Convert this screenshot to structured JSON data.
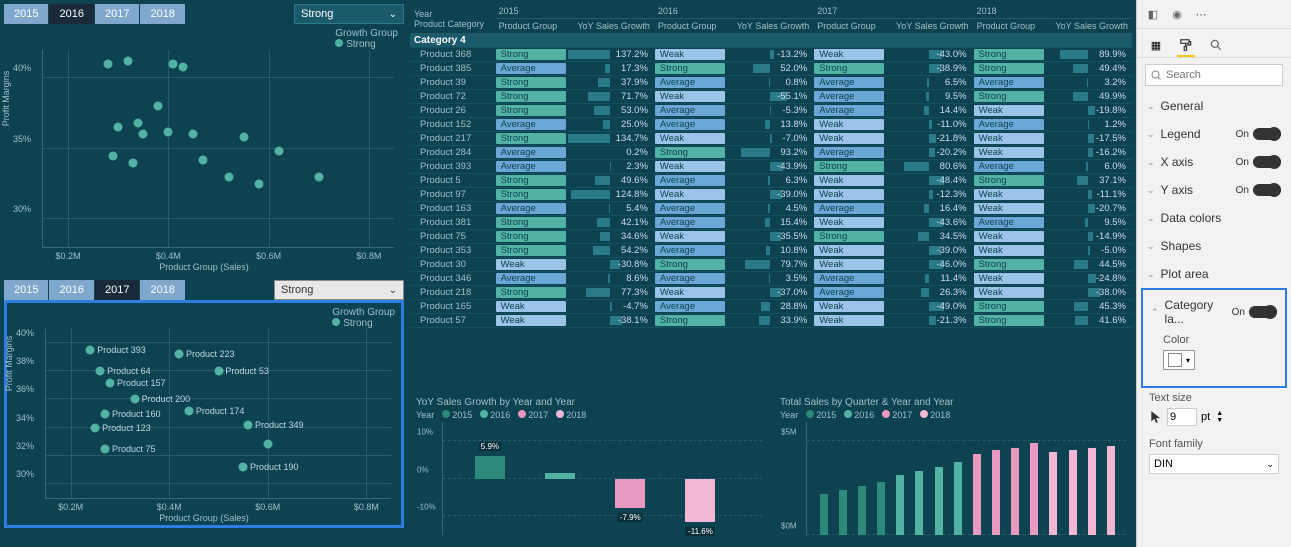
{
  "colors": {
    "bg": "#0d4251",
    "teal": "#52b3a4",
    "tealDark": "#2d8a7a",
    "blue": "#6ba8d8",
    "pink": "#e89ac0",
    "pinkDark": "#d878a8",
    "grid": "#2a5a6a",
    "text": "#a0c0c8",
    "tab": "#7fa8cc",
    "tabSel": "#1a2a3a",
    "selectOutline": "#2e7de0",
    "yellow": "#f2c811"
  },
  "scatter1": {
    "tabs": [
      "2015",
      "2016",
      "2017",
      "2018"
    ],
    "selectedTab": "2016",
    "dropdown": "Strong",
    "legendTitle": "Growth Group",
    "legendItem": "Strong",
    "yLabel": "Profit Margins",
    "xLabel": "Product Group (Sales)",
    "yTicks": [
      {
        "v": 30,
        "l": "30%"
      },
      {
        "v": 35,
        "l": "35%"
      },
      {
        "v": 40,
        "l": "40%"
      }
    ],
    "xTicks": [
      {
        "v": 0.2,
        "l": "$0.2M"
      },
      {
        "v": 0.4,
        "l": "$0.4M"
      },
      {
        "v": 0.6,
        "l": "$0.6M"
      },
      {
        "v": 0.8,
        "l": "$0.8M"
      }
    ],
    "xlim": [
      0.15,
      0.85
    ],
    "ylim": [
      28,
      42
    ],
    "points": [
      {
        "x": 0.28,
        "y": 41
      },
      {
        "x": 0.32,
        "y": 41.2
      },
      {
        "x": 0.41,
        "y": 41
      },
      {
        "x": 0.43,
        "y": 40.8
      },
      {
        "x": 0.38,
        "y": 38
      },
      {
        "x": 0.34,
        "y": 36.8
      },
      {
        "x": 0.3,
        "y": 36.5
      },
      {
        "x": 0.35,
        "y": 36
      },
      {
        "x": 0.4,
        "y": 36.2
      },
      {
        "x": 0.45,
        "y": 36
      },
      {
        "x": 0.29,
        "y": 34.5
      },
      {
        "x": 0.33,
        "y": 34
      },
      {
        "x": 0.47,
        "y": 34.2
      },
      {
        "x": 0.55,
        "y": 35.8
      },
      {
        "x": 0.62,
        "y": 34.8
      },
      {
        "x": 0.52,
        "y": 33
      },
      {
        "x": 0.58,
        "y": 32.5
      },
      {
        "x": 0.7,
        "y": 33
      }
    ]
  },
  "scatter2": {
    "tabs": [
      "2015",
      "2016",
      "2017",
      "2018"
    ],
    "selectedTab": "2017",
    "dropdown": "Strong",
    "legendTitle": "Growth Group",
    "legendItem": "Strong",
    "yLabel": "Profit Margins",
    "xLabel": "Product Group (Sales)",
    "yTicks": [
      {
        "v": 30,
        "l": "30%"
      },
      {
        "v": 32,
        "l": "32%"
      },
      {
        "v": 34,
        "l": "34%"
      },
      {
        "v": 36,
        "l": "36%"
      },
      {
        "v": 38,
        "l": "38%"
      },
      {
        "v": 40,
        "l": "40%"
      }
    ],
    "xTicks": [
      {
        "v": 0.2,
        "l": "$0.2M"
      },
      {
        "v": 0.4,
        "l": "$0.4M"
      },
      {
        "v": 0.6,
        "l": "$0.6M"
      },
      {
        "v": 0.8,
        "l": "$0.8M"
      }
    ],
    "xlim": [
      0.15,
      0.85
    ],
    "ylim": [
      29,
      41
    ],
    "points": [
      {
        "x": 0.24,
        "y": 39.5,
        "l": "Product 393"
      },
      {
        "x": 0.42,
        "y": 39.2,
        "l": "Product 223"
      },
      {
        "x": 0.26,
        "y": 38,
        "l": "Product 64"
      },
      {
        "x": 0.5,
        "y": 38,
        "l": "Product 53"
      },
      {
        "x": 0.28,
        "y": 37.2,
        "l": "Product 157"
      },
      {
        "x": 0.33,
        "y": 36,
        "l": "Product 200"
      },
      {
        "x": 0.27,
        "y": 35,
        "l": "Product 160"
      },
      {
        "x": 0.44,
        "y": 35.2,
        "l": "Product 174"
      },
      {
        "x": 0.25,
        "y": 34,
        "l": "Product 123"
      },
      {
        "x": 0.56,
        "y": 34.2,
        "l": "Product 349"
      },
      {
        "x": 0.27,
        "y": 32.5,
        "l": "Product 75"
      },
      {
        "x": 0.55,
        "y": 31.2,
        "l": "Product 190"
      },
      {
        "x": 0.6,
        "y": 32.8
      }
    ]
  },
  "table": {
    "yearHdr": "Year",
    "prodHdr": "Product Category",
    "grpHdr": "Product Group",
    "valHdr": "YoY Sales Growth",
    "years": [
      "2015",
      "2016",
      "2017",
      "2018"
    ],
    "category": "Category 4",
    "grpColors": {
      "Strong": "#52b3a4",
      "Average": "#6ba8d8",
      "Weak": "#9cc4e8"
    },
    "rows": [
      {
        "p": "Product 368",
        "g": [
          "Strong",
          "Weak",
          "Weak",
          "Strong"
        ],
        "v": [
          137.2,
          -13.2,
          -43.0,
          89.9
        ]
      },
      {
        "p": "Product 385",
        "g": [
          "Average",
          "Strong",
          "Strong",
          "Strong"
        ],
        "v": [
          17.3,
          52.0,
          -38.9,
          49.4
        ]
      },
      {
        "p": "Product 39",
        "g": [
          "Strong",
          "Average",
          "Average",
          "Average"
        ],
        "v": [
          37.9,
          0.8,
          6.5,
          3.2
        ]
      },
      {
        "p": "Product 72",
        "g": [
          "Strong",
          "Weak",
          "Average",
          "Strong"
        ],
        "v": [
          71.7,
          -55.1,
          9.5,
          49.9
        ]
      },
      {
        "p": "Product 26",
        "g": [
          "Strong",
          "Average",
          "Average",
          "Weak"
        ],
        "v": [
          53.0,
          -5.3,
          14.4,
          -19.8
        ]
      },
      {
        "p": "Product 152",
        "g": [
          "Average",
          "Average",
          "Weak",
          "Average"
        ],
        "v": [
          25.0,
          13.8,
          -11.0,
          1.2
        ]
      },
      {
        "p": "Product 217",
        "g": [
          "Strong",
          "Weak",
          "Weak",
          "Weak"
        ],
        "v": [
          134.7,
          -7.0,
          -21.8,
          -17.5
        ]
      },
      {
        "p": "Product 284",
        "g": [
          "Average",
          "Strong",
          "Average",
          "Weak"
        ],
        "v": [
          0.2,
          93.2,
          -20.2,
          -16.2
        ]
      },
      {
        "p": "Product 393",
        "g": [
          "Average",
          "Weak",
          "Strong",
          "Average"
        ],
        "v": [
          2.3,
          -43.9,
          80.6,
          6.0
        ]
      },
      {
        "p": "Product 5",
        "g": [
          "Strong",
          "Average",
          "Weak",
          "Strong"
        ],
        "v": [
          49.6,
          6.3,
          -48.4,
          37.1
        ]
      },
      {
        "p": "Product 97",
        "g": [
          "Strong",
          "Weak",
          "Weak",
          "Weak"
        ],
        "v": [
          124.8,
          -39.0,
          -12.3,
          -11.1
        ]
      },
      {
        "p": "Product 163",
        "g": [
          "Average",
          "Average",
          "Average",
          "Weak"
        ],
        "v": [
          5.4,
          4.5,
          16.4,
          -20.7
        ]
      },
      {
        "p": "Product 381",
        "g": [
          "Strong",
          "Average",
          "Weak",
          "Average"
        ],
        "v": [
          42.1,
          15.4,
          -43.6,
          9.5
        ]
      },
      {
        "p": "Product 75",
        "g": [
          "Strong",
          "Weak",
          "Strong",
          "Weak"
        ],
        "v": [
          34.6,
          -35.5,
          34.5,
          -14.9
        ]
      },
      {
        "p": "Product 353",
        "g": [
          "Strong",
          "Average",
          "Weak",
          "Weak"
        ],
        "v": [
          54.2,
          10.8,
          -39.0,
          -5.0
        ]
      },
      {
        "p": "Product 30",
        "g": [
          "Weak",
          "Strong",
          "Weak",
          "Strong"
        ],
        "v": [
          -30.8,
          79.7,
          -46.0,
          44.5
        ]
      },
      {
        "p": "Product 346",
        "g": [
          "Average",
          "Average",
          "Average",
          "Weak"
        ],
        "v": [
          8.6,
          3.5,
          11.4,
          -24.8
        ]
      },
      {
        "p": "Product 218",
        "g": [
          "Strong",
          "Weak",
          "Average",
          "Weak"
        ],
        "v": [
          77.3,
          -37.0,
          26.3,
          -38.0
        ]
      },
      {
        "p": "Product 165",
        "g": [
          "Weak",
          "Average",
          "Weak",
          "Strong"
        ],
        "v": [
          -4.7,
          28.8,
          -49.0,
          45.3
        ]
      },
      {
        "p": "Product 57",
        "g": [
          "Weak",
          "Strong",
          "Weak",
          "Strong"
        ],
        "v": [
          -38.1,
          33.9,
          -21.3,
          41.6
        ]
      }
    ]
  },
  "barChart": {
    "title": "YoY Sales Growth by Year and Year",
    "legendLabel": "Year",
    "years": [
      "2015",
      "2016",
      "2017",
      "2018"
    ],
    "colors": [
      "#2d8a7a",
      "#52b3a4",
      "#e89ac0",
      "#f0b8d4"
    ],
    "yTicks": [
      {
        "v": 10,
        "l": "10%"
      },
      {
        "v": 0,
        "l": "0%"
      },
      {
        "v": -10,
        "l": "-10%"
      }
    ],
    "ylim": [
      -15,
      15
    ],
    "bars": [
      {
        "v": 5.9,
        "l": "5.9%"
      },
      {
        "v": 1.5
      },
      {
        "v": -7.9,
        "l": "-7.9%"
      },
      {
        "v": -11.6,
        "l": "-11.6%"
      }
    ]
  },
  "qChart": {
    "title": "Total Sales by Quarter & Year and Year",
    "legendLabel": "Year",
    "years": [
      "2015",
      "2016",
      "2017",
      "2018"
    ],
    "colors": [
      "#2d8a7a",
      "#52b3a4",
      "#e89ac0",
      "#f0b8d4"
    ],
    "yTicks": [
      {
        "v": 5,
        "l": "$5M"
      },
      {
        "v": 0,
        "l": "$0M"
      }
    ],
    "ylim": [
      0,
      6
    ],
    "bars": [
      2.2,
      2.4,
      2.6,
      2.8,
      3.2,
      3.4,
      3.6,
      3.9,
      4.3,
      4.5,
      4.6,
      4.9,
      4.4,
      4.5,
      4.6,
      4.7
    ]
  },
  "formatPane": {
    "searchPlaceholder": "Search",
    "items": [
      {
        "label": "General"
      },
      {
        "label": "Legend",
        "toggle": "On"
      },
      {
        "label": "X axis",
        "toggle": "On"
      },
      {
        "label": "Y axis",
        "toggle": "On"
      },
      {
        "label": "Data colors"
      },
      {
        "label": "Shapes"
      },
      {
        "label": "Plot area"
      }
    ],
    "expanded": {
      "label": "Category la...",
      "toggle": "On"
    },
    "colorLabel": "Color",
    "textSizeLabel": "Text size",
    "textSizeValue": "9",
    "textSizeUnit": "pt",
    "fontFamilyLabel": "Font family",
    "fontFamilyValue": "DIN"
  }
}
